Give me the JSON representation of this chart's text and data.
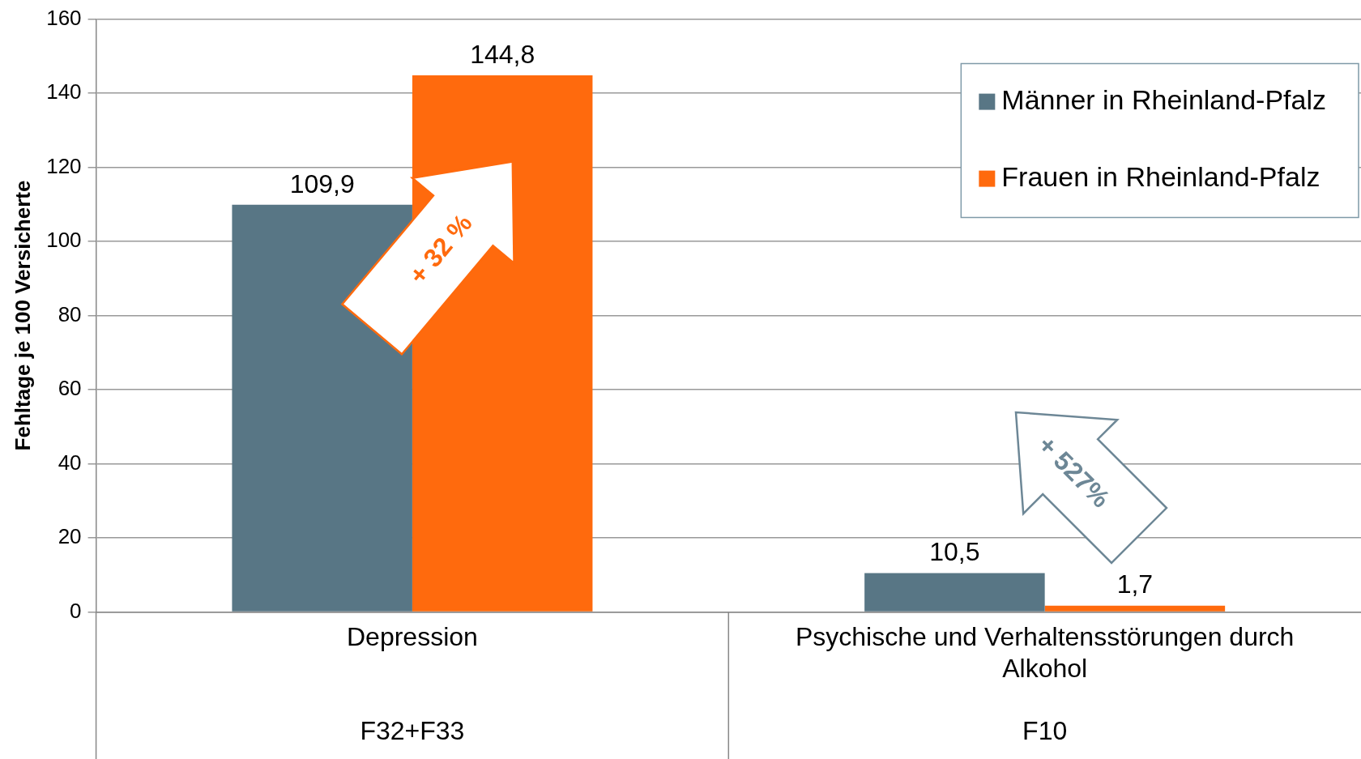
{
  "chart_data": {
    "type": "bar",
    "ylabel": "Fehltage je 100 Versicherte",
    "categories": [
      "Depression",
      "Psychische und Verhaltensstörungen durch Alkohol"
    ],
    "series": [
      {
        "name": "Männer in Rheinland-Pfalz",
        "color": "#587685",
        "values": [
          109.9,
          10.5
        ],
        "value_labels": [
          "109,9",
          "10,5"
        ]
      },
      {
        "name": "Frauen in Rheinland-Pfalz",
        "color": "#ff6a0d",
        "values": [
          144.8,
          1.7
        ],
        "value_labels": [
          "144,8",
          "1,7"
        ]
      }
    ],
    "ylim": [
      0,
      160
    ],
    "yticks": [
      0,
      20,
      40,
      60,
      80,
      100,
      120,
      140,
      160
    ],
    "grid": "y",
    "legend": "top right",
    "annotations": [
      "F32+F33",
      "F10",
      "+ 32 %",
      "+ 527%"
    ]
  }
}
